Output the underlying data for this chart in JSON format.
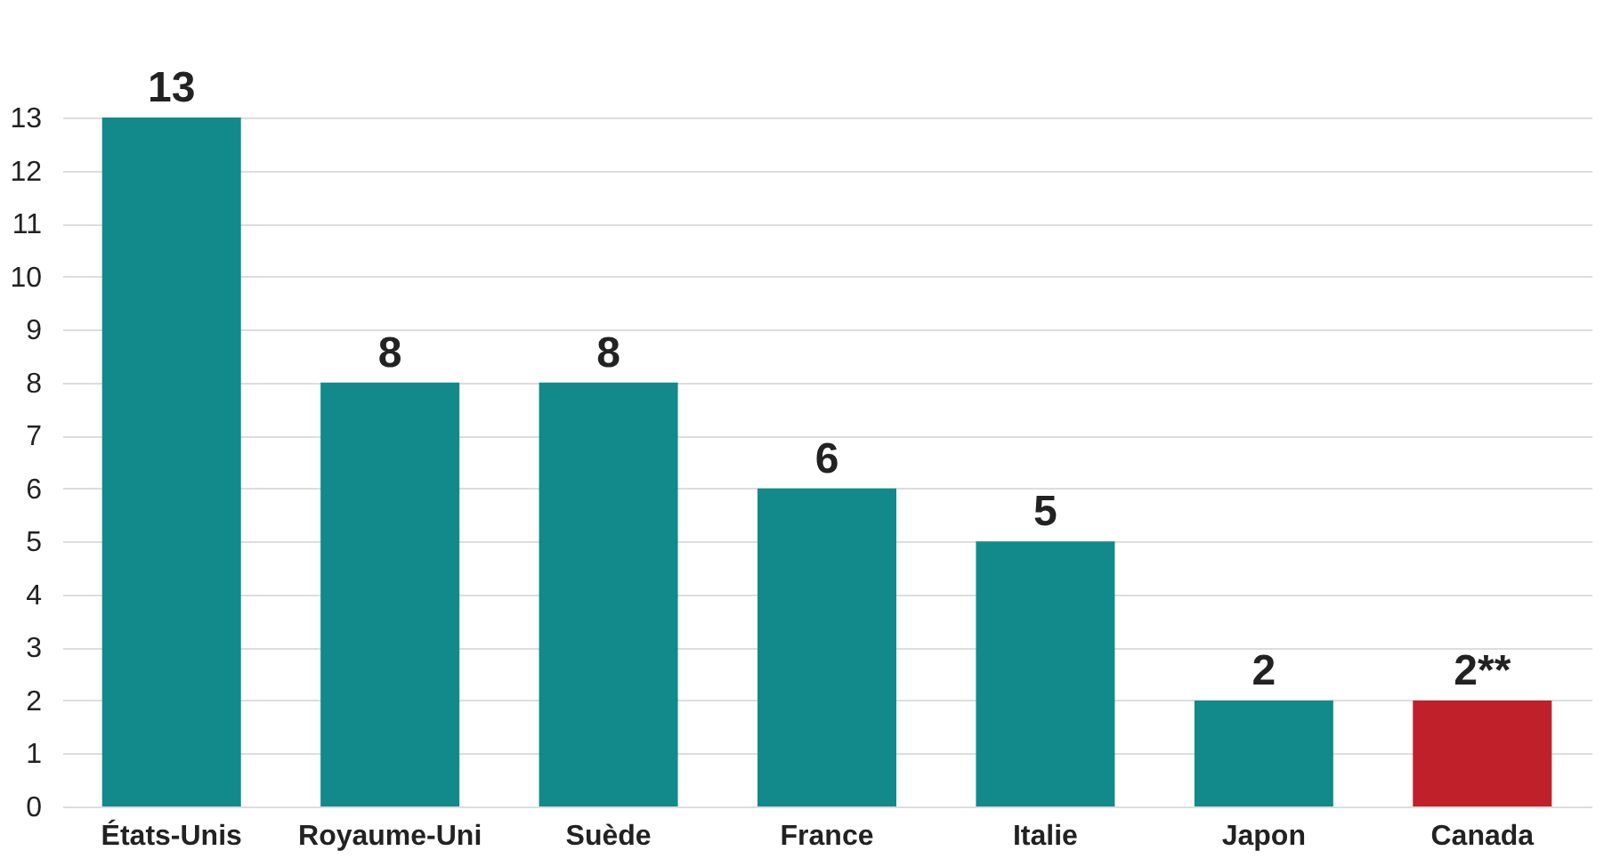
{
  "chart_data": {
    "type": "bar",
    "categories": [
      "États-Unis",
      "Royaume-Uni",
      "Suède",
      "France",
      "Italie",
      "Japon",
      "Canada"
    ],
    "values": [
      13,
      8,
      8,
      6,
      5,
      2,
      2
    ],
    "colors": [
      "#128a8c",
      "#128a8c",
      "#128a8c",
      "#128a8c",
      "#128a8c",
      "#128a8c",
      "#c0202a"
    ],
    "value_labels": [
      "13",
      "8",
      "8",
      "6",
      "5",
      "2",
      "2**"
    ],
    "ylim": [
      0,
      13
    ],
    "yticks": [
      0,
      1,
      2,
      3,
      4,
      5,
      6,
      7,
      8,
      9,
      10,
      11,
      12,
      13
    ],
    "grid": "y"
  }
}
